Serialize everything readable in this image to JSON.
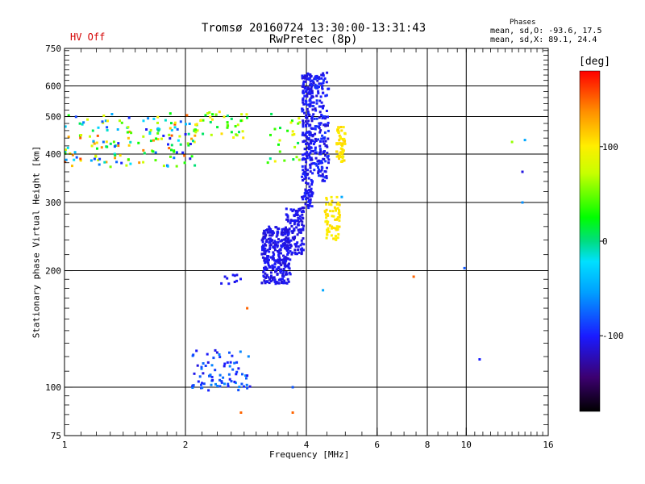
{
  "header": {
    "title": "Tromsø 20160724 13:30:00-13:31:43",
    "subtitle": "RwPretec (8p)",
    "status": "HV Off",
    "status_color": "#d40000"
  },
  "phases": {
    "heading": "Phases",
    "o_mode": "mean, sd,O: -93.6, 17.5",
    "x_mode": "mean, sd,X:  89.1, 24.4"
  },
  "colorbar": {
    "unit": "[deg]",
    "ticks": [
      100,
      0,
      -100
    ],
    "range": [
      -180,
      180
    ]
  },
  "chart_data": {
    "type": "scatter",
    "xlabel": "Frequency [MHz]",
    "ylabel": "Stationary phase Virtual Height [km]",
    "x_scale": "log",
    "y_scale": "log",
    "xlim": [
      1,
      16
    ],
    "ylim": [
      75,
      750
    ],
    "x_ticks": [
      1,
      2,
      4,
      6,
      8,
      10,
      16
    ],
    "y_ticks": [
      75,
      100,
      200,
      300,
      400,
      500,
      600,
      750
    ],
    "x_major_grid": [
      2,
      4,
      6,
      8,
      10
    ],
    "y_major_grid": [
      100,
      200,
      300,
      400,
      500,
      600
    ],
    "clusters": [
      {
        "name": "",
        "f": [
          1.0,
          2.15
        ],
        "h": [
          370,
          510
        ],
        "phase": [
          -110,
          160
        ],
        "count": 170
      },
      {
        "name": "",
        "f": [
          2.1,
          2.85
        ],
        "h": [
          440,
          515
        ],
        "phase": [
          -20,
          110
        ],
        "count": 40
      },
      {
        "name": "",
        "f": [
          3.2,
          3.9
        ],
        "h": [
          380,
          520
        ],
        "phase": [
          -20,
          100
        ],
        "count": 25
      },
      {
        "name": "",
        "f": [
          3.1,
          3.65
        ],
        "h": [
          185,
          260
        ],
        "phase": [
          -115,
          -100
        ],
        "count": 300
      },
      {
        "name": "",
        "f": [
          3.55,
          3.95
        ],
        "h": [
          220,
          290
        ],
        "phase": [
          -115,
          -100
        ],
        "count": 120
      },
      {
        "name": "",
        "f": [
          3.9,
          4.15
        ],
        "h": [
          290,
          650
        ],
        "phase": [
          -115,
          -95
        ],
        "count": 260
      },
      {
        "name": "",
        "f": [
          4.15,
          4.55
        ],
        "h": [
          340,
          650
        ],
        "phase": [
          -115,
          -90
        ],
        "count": 170
      },
      {
        "name": "",
        "f": [
          4.45,
          4.85
        ],
        "h": [
          240,
          310
        ],
        "phase": [
          95,
          110
        ],
        "count": 70
      },
      {
        "name": "",
        "f": [
          4.75,
          5.0
        ],
        "h": [
          380,
          470
        ],
        "phase": [
          95,
          115
        ],
        "count": 60
      },
      {
        "name": "",
        "f": [
          2.05,
          2.9
        ],
        "h": [
          98,
          125
        ],
        "phase": [
          -110,
          -60
        ],
        "count": 80
      },
      {
        "name": "",
        "f": [
          2.45,
          2.75
        ],
        "h": [
          185,
          195
        ],
        "phase": [
          -110,
          -100
        ],
        "count": 10
      }
    ],
    "isolated_points": [
      {
        "f": 13.0,
        "h": 430,
        "phase": 60
      },
      {
        "f": 14.0,
        "h": 435,
        "phase": -50
      },
      {
        "f": 13.8,
        "h": 360,
        "phase": -110
      },
      {
        "f": 13.8,
        "h": 300,
        "phase": -60
      },
      {
        "f": 10.8,
        "h": 118,
        "phase": -100
      },
      {
        "f": 9.9,
        "h": 203,
        "phase": -80
      },
      {
        "f": 7.4,
        "h": 193,
        "phase": 150
      },
      {
        "f": 4.4,
        "h": 178,
        "phase": -50
      },
      {
        "f": 4.9,
        "h": 310,
        "phase": -50
      },
      {
        "f": 3.7,
        "h": 86,
        "phase": 150
      },
      {
        "f": 2.75,
        "h": 86,
        "phase": 150
      },
      {
        "f": 2.85,
        "h": 160,
        "phase": 150
      },
      {
        "f": 3.7,
        "h": 100,
        "phase": -80
      }
    ]
  }
}
